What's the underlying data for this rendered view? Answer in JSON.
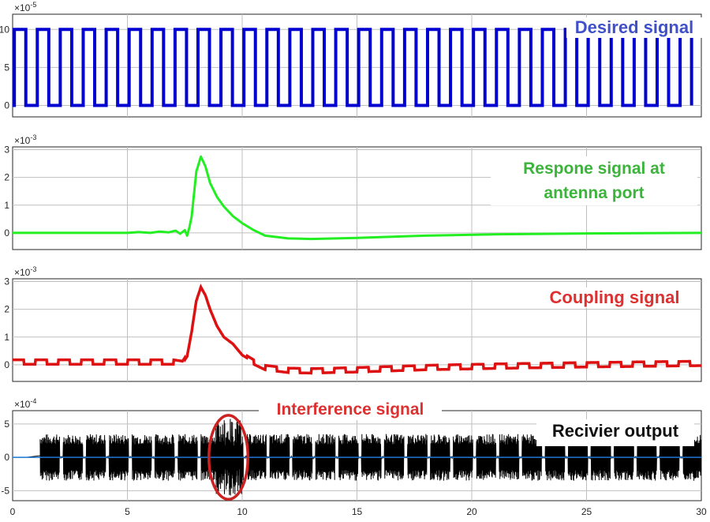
{
  "colors": {
    "desired": "#0000d0",
    "response": "#22ee22",
    "coupling": "#dd1111",
    "interference": "#000000",
    "output": "#1f77d4",
    "circle": "#cc2222",
    "grid": "#bfbfbf"
  },
  "chart_data": [
    {
      "type": "line",
      "multiplier_label": "×10",
      "multiplier_exp": "-5",
      "xlim": [
        0,
        30
      ],
      "ylim": [
        -1.5,
        12
      ],
      "yticks": [
        "0",
        "5",
        "10"
      ],
      "ytick_values": [
        0,
        5,
        10
      ],
      "grid": true,
      "annotation": "Desired signal",
      "series": [
        {
          "waveform": "square",
          "low": 0,
          "high": 10,
          "period": 1,
          "x_start": 0,
          "x_end": 30,
          "color": "#0000d0"
        }
      ]
    },
    {
      "type": "line",
      "multiplier_label": "×10",
      "multiplier_exp": "-3",
      "xlim": [
        0,
        30
      ],
      "ylim": [
        -0.6,
        3.1
      ],
      "yticks": [
        "0",
        "1",
        "2",
        "3"
      ],
      "ytick_values": [
        0,
        1,
        2,
        3
      ],
      "grid": true,
      "annotation": "Respone signal at antenna port",
      "series": [
        {
          "color": "#22ee22",
          "x": [
            0,
            5,
            5.5,
            6,
            6.4,
            6.8,
            7.1,
            7.3,
            7.5,
            7.6,
            7.7,
            7.8,
            8.0,
            8.2,
            8.4,
            8.6,
            8.9,
            9.2,
            9.6,
            10.0,
            10.5,
            11.0,
            12.0,
            13.0,
            15.0,
            18.0,
            21.0,
            25.0,
            30.0
          ],
          "y": [
            0,
            0,
            0.03,
            0,
            0.05,
            0.02,
            0.08,
            -0.03,
            0.1,
            -0.1,
            0.2,
            0.6,
            2.2,
            2.75,
            2.4,
            1.8,
            1.3,
            0.95,
            0.6,
            0.35,
            0.1,
            -0.1,
            -0.2,
            -0.22,
            -0.18,
            -0.1,
            -0.05,
            -0.02,
            0
          ]
        }
      ]
    },
    {
      "type": "line",
      "multiplier_label": "×10",
      "multiplier_exp": "-3",
      "xlim": [
        0,
        30
      ],
      "ylim": [
        -0.6,
        3.1
      ],
      "yticks": [
        "0",
        "1",
        "2",
        "3"
      ],
      "ytick_values": [
        0,
        1,
        2,
        3
      ],
      "grid": true,
      "annotation": "Coupling signal",
      "series": [
        {
          "color": "#dd1111",
          "x": [
            0,
            5,
            6,
            7,
            7.4,
            7.6,
            7.8,
            8.0,
            8.2,
            8.4,
            8.6,
            8.9,
            9.2,
            9.6,
            10.0,
            10.5,
            11.0,
            12.0,
            13.0,
            15.0,
            18.0,
            21.0,
            25.0,
            30.0
          ],
          "y": [
            0.1,
            0.1,
            0.1,
            0.1,
            0.05,
            0.3,
            1.2,
            2.3,
            2.8,
            2.5,
            2.0,
            1.4,
            1.0,
            0.75,
            0.35,
            0.1,
            -0.1,
            -0.2,
            -0.22,
            -0.18,
            -0.1,
            -0.05,
            0,
            0.05
          ],
          "ripple_amplitude": 0.08,
          "ripple_period": 1
        }
      ]
    },
    {
      "type": "line",
      "multiplier_label": "×10",
      "multiplier_exp": "-4",
      "xlim": [
        0,
        30
      ],
      "ylim": [
        -6.5,
        7
      ],
      "yticks": [
        "-5",
        "0",
        "5"
      ],
      "ytick_values": [
        -5,
        0,
        5
      ],
      "xticks": [
        "0",
        "5",
        "10",
        "15",
        "20",
        "25",
        "30"
      ],
      "xtick_values": [
        0,
        5,
        10,
        15,
        20,
        25,
        30
      ],
      "grid": true,
      "annotations": [
        "Interference signal",
        "Recivier output"
      ],
      "series": [
        {
          "name": "interference",
          "color": "#000000",
          "burst_amplitude": 3.5,
          "burst_period": 1,
          "burst_duty": 0.85,
          "x_start": 1.2,
          "x_end": 30,
          "peak_region": [
            8.8,
            10.0
          ],
          "peak_amplitude": 5.8
        },
        {
          "name": "output",
          "color": "#1f77d4",
          "value": 0
        }
      ],
      "highlight_ellipse": {
        "cx": 9.4,
        "cy": 0,
        "rx": 0.85,
        "ry": 6.3
      }
    }
  ]
}
